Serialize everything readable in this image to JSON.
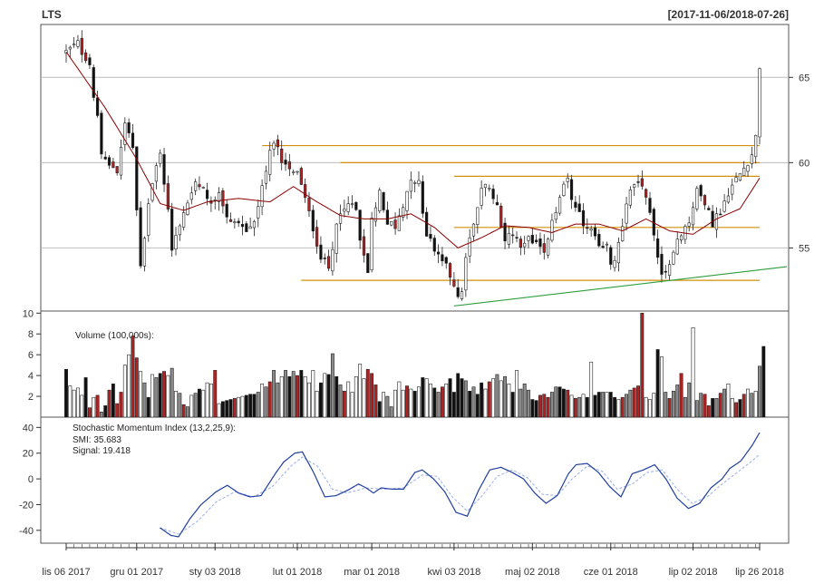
{
  "header": {
    "symbol": "LTS",
    "date_range": "[2017-11-06/2018-07-26]"
  },
  "colors": {
    "up_candle": "#ffffff",
    "down_candle_black": "#111111",
    "down_candle_red": "#b22222",
    "ma_line": "#8b0000",
    "hline": "#d4900a",
    "trendline": "#2e9e3e",
    "smi_line": "#1f3f9f",
    "signal_line": "#9aaee8",
    "grid": "#bbbbbb"
  },
  "chart_data": [
    {
      "type": "candlestick",
      "panel": "price",
      "title": "LTS",
      "ylim": [
        51.3,
        68.1
      ],
      "yticks": [
        55,
        60,
        65
      ],
      "x_tick_labels": [
        "lis 06 2017",
        "gru 01 2017",
        "sty 03 2018",
        "lut 01 2018",
        "mar 01 2018",
        "kwi 03 2018",
        "maj 02 2018",
        "cze 01 2018",
        "lip 02 2018",
        "lip 26 2018"
      ],
      "x_tick_index": [
        0,
        18,
        38,
        59,
        78,
        99,
        119,
        139,
        160,
        177
      ],
      "n_bars": 178,
      "close_path": [
        [
          0,
          66.5
        ],
        [
          3,
          67.0
        ],
        [
          6,
          65.5
        ],
        [
          8,
          62.5
        ],
        [
          9,
          60.3
        ],
        [
          11,
          59.9
        ],
        [
          13,
          59.6
        ],
        [
          15,
          62.3
        ],
        [
          16,
          62.0
        ],
        [
          17,
          61.0
        ],
        [
          18,
          57.0
        ],
        [
          19,
          54.0
        ],
        [
          20,
          55.3
        ],
        [
          21,
          57.5
        ],
        [
          22,
          59.0
        ],
        [
          24,
          60.7
        ],
        [
          25,
          59.0
        ],
        [
          27,
          55.0
        ],
        [
          29,
          56.5
        ],
        [
          31,
          57.7
        ],
        [
          33,
          58.7
        ],
        [
          35,
          58.5
        ],
        [
          37,
          57.7
        ],
        [
          39,
          58.4
        ],
        [
          41,
          56.8
        ],
        [
          44,
          56.4
        ],
        [
          46,
          56.0
        ],
        [
          48,
          56.6
        ],
        [
          50,
          58.5
        ],
        [
          52,
          60.7
        ],
        [
          53,
          61.4
        ],
        [
          55,
          60.2
        ],
        [
          57,
          59.8
        ],
        [
          59,
          59.5
        ],
        [
          61,
          57.8
        ],
        [
          63,
          56.2
        ],
        [
          65,
          54.5
        ],
        [
          67,
          53.8
        ],
        [
          69,
          56.5
        ],
        [
          72,
          57.5
        ],
        [
          74,
          57.5
        ],
        [
          75,
          55.5
        ],
        [
          76,
          54.5
        ],
        [
          77,
          53.7
        ],
        [
          78,
          56.8
        ],
        [
          80,
          58.3
        ],
        [
          82,
          56.6
        ],
        [
          84,
          56.3
        ],
        [
          86,
          57.5
        ],
        [
          88,
          59.2
        ],
        [
          90,
          58.8
        ],
        [
          92,
          55.7
        ],
        [
          94,
          55.0
        ],
        [
          96,
          54.3
        ],
        [
          98,
          53.4
        ],
        [
          99,
          53.0
        ],
        [
          100,
          52.0
        ],
        [
          101,
          52.5
        ],
        [
          102,
          54.5
        ],
        [
          104,
          56.5
        ],
        [
          106,
          58.5
        ],
        [
          108,
          58.7
        ],
        [
          110,
          57.5
        ],
        [
          112,
          55.5
        ],
        [
          114,
          55.8
        ],
        [
          116,
          55.3
        ],
        [
          118,
          55.6
        ],
        [
          120,
          55.4
        ],
        [
          122,
          55.0
        ],
        [
          124,
          56.4
        ],
        [
          126,
          58.0
        ],
        [
          128,
          59.0
        ],
        [
          130,
          57.2
        ],
        [
          132,
          56.5
        ],
        [
          134,
          56.0
        ],
        [
          136,
          54.9
        ],
        [
          138,
          55.0
        ],
        [
          139,
          53.9
        ],
        [
          140,
          54.3
        ],
        [
          142,
          56.5
        ],
        [
          144,
          58.5
        ],
        [
          146,
          59.0
        ],
        [
          148,
          58.2
        ],
        [
          150,
          55.7
        ],
        [
          152,
          53.5
        ],
        [
          153,
          53.6
        ],
        [
          155,
          55.0
        ],
        [
          157,
          55.7
        ],
        [
          159,
          56.6
        ],
        [
          161,
          58.5
        ],
        [
          163,
          57.5
        ],
        [
          165,
          56.5
        ],
        [
          167,
          57.2
        ],
        [
          169,
          58.3
        ],
        [
          171,
          59.0
        ],
        [
          173,
          59.7
        ],
        [
          175,
          60.5
        ],
        [
          176,
          61.5
        ],
        [
          177,
          65.7
        ]
      ],
      "moving_average": [
        [
          0,
          66.5
        ],
        [
          10,
          63.2
        ],
        [
          18,
          60.2
        ],
        [
          24,
          57.6
        ],
        [
          30,
          57.2
        ],
        [
          36,
          57.7
        ],
        [
          44,
          57.9
        ],
        [
          52,
          57.7
        ],
        [
          58,
          58.6
        ],
        [
          64,
          57.7
        ],
        [
          70,
          56.9
        ],
        [
          76,
          56.7
        ],
        [
          82,
          56.7
        ],
        [
          88,
          57.0
        ],
        [
          94,
          56.2
        ],
        [
          100,
          55.0
        ],
        [
          106,
          55.6
        ],
        [
          112,
          56.3
        ],
        [
          118,
          56.2
        ],
        [
          124,
          55.9
        ],
        [
          130,
          56.4
        ],
        [
          136,
          56.4
        ],
        [
          142,
          56.0
        ],
        [
          148,
          56.7
        ],
        [
          154,
          56.0
        ],
        [
          160,
          55.8
        ],
        [
          166,
          56.7
        ],
        [
          172,
          57.3
        ],
        [
          177,
          59.1
        ]
      ],
      "horizontal_lines": [
        {
          "y": 61.0,
          "from": 50,
          "to": 177
        },
        {
          "y": 60.0,
          "from": 70,
          "to": 177
        },
        {
          "y": 59.2,
          "from": 99,
          "to": 177
        },
        {
          "y": 56.2,
          "from": 99,
          "to": 177
        },
        {
          "y": 53.1,
          "from": 60,
          "to": 177
        }
      ],
      "trendline": {
        "from": [
          99,
          51.6
        ],
        "to": [
          177,
          53.9
        ]
      }
    },
    {
      "type": "bar",
      "panel": "volume",
      "label": "Volume (100,000s):",
      "ylim": [
        0,
        10.2
      ],
      "yticks": [
        2,
        4,
        6,
        8,
        10
      ],
      "values": [
        4.6,
        3.0,
        2.6,
        2.8,
        2.1,
        3.8,
        0.9,
        1.9,
        2.1,
        0.5,
        1.1,
        2.6,
        3.2,
        1.3,
        2.4,
        5.0,
        6.0,
        7.8,
        5.7,
        4.4,
        3.3,
        1.9,
        4.1,
        3.8,
        4.2,
        4.4,
        4.0,
        4.7,
        2.5,
        2.3,
        1.2,
        1.0,
        2.1,
        2.3,
        2.7,
        2.6,
        3.3,
        3.2,
        4.5,
        1.3,
        1.5,
        1.6,
        1.7,
        1.8,
        1.9,
        2.0,
        2.1,
        2.2,
        2.2,
        2.4,
        3.2,
        2.9,
        3.4,
        4.5,
        3.3,
        3.9,
        4.5,
        3.9,
        4.4,
        4.0,
        4.5,
        3.9,
        3.3,
        4.5,
        2.5,
        3.3,
        4.2,
        4.1,
        6.1,
        3.9,
        3.1,
        2.5,
        3.4,
        2.4,
        3.9,
        5.1,
        3.7,
        4.6,
        4.2,
        3.1,
        1.5,
        2.4,
        2.0,
        1.0,
        2.6,
        3.4,
        2.6,
        3.0,
        2.7,
        2.5,
        2.9,
        3.8,
        3.7,
        3.2,
        2.8,
        2.4,
        2.9,
        3.2,
        3.7,
        2.4,
        4.2,
        3.7,
        3.5,
        2.5,
        2.9,
        2.2,
        3.3,
        2.7,
        3.4,
        3.7,
        4.1,
        3.5,
        3.9,
        3.2,
        2.4,
        4.5,
        2.7,
        3.2,
        2.6,
        1.7,
        1.6,
        2.1,
        2.2,
        1.9,
        2.4,
        2.9,
        2.9,
        2.7,
        2.6,
        2.1,
        1.8,
        1.9,
        2.2,
        1.9,
        5.3,
        2.1,
        2.4,
        2.4,
        2.4,
        2.4,
        1.9,
        1.7,
        1.9,
        2.2,
        2.6,
        2.8,
        3.0,
        10.0,
        1.9,
        1.7,
        2.3,
        6.5,
        5.8,
        2.4,
        1.8,
        2.5,
        3.1,
        4.2,
        1.9,
        3.3,
        8.6,
        1.6,
        2.3,
        2.2,
        1.1,
        1.8,
        1.8,
        2.3,
        2.7,
        3.2,
        1.8,
        1.4,
        1.7,
        2.2,
        2.7,
        2.3,
        2.5,
        4.9,
        6.8
      ],
      "volume_rel": [
        0.47,
        0.3,
        0.27,
        0.28,
        0.23,
        0.45,
        0.09,
        0.2,
        0.26,
        0.05,
        0.1,
        0.27,
        0.38,
        0.13,
        0.27,
        0.66,
        0.45,
        0.74,
        0.48,
        0.47,
        0.46,
        0.26,
        0.4,
        0.5,
        0.47,
        0.27,
        0.35,
        0.33,
        0.14,
        0.23,
        0.12,
        0.09,
        0.2,
        0.24,
        0.29,
        0.27,
        0.3,
        0.3,
        0.42,
        0.17,
        0.14,
        0.28,
        0.3,
        0.44,
        0.43,
        0.33,
        0.4,
        0.31,
        0.42,
        0.27,
        0.29,
        0.39,
        0.45,
        0.62,
        0.36,
        0.42,
        0.63,
        0.54,
        0.35,
        0.3,
        0.41,
        0.39,
        0.3,
        0.45,
        0.3,
        0.3,
        0.4,
        0.58,
        0.99,
        0.9,
        0.22,
        0.35,
        0.33,
        0.51,
        0.51,
        0.41,
        0.35,
        0.45,
        0.33,
        0.27,
        0.17,
        0.29,
        0.29,
        0.16,
        0.25,
        0.41,
        0.22,
        0.37,
        0.27,
        0.22,
        0.33,
        0.48,
        0.5,
        0.3,
        0.22,
        0.17,
        0.23,
        0.33,
        0.49,
        0.24,
        0.38,
        0.3,
        0.32,
        0.24,
        0.33,
        0.29,
        0.28,
        0.24,
        0.32,
        0.36,
        0.38,
        0.33,
        0.37,
        0.33,
        0.2,
        0.43,
        0.29,
        0.3,
        0.25,
        0.17,
        0.18,
        0.22,
        0.21,
        0.19,
        0.24,
        0.28,
        0.28,
        0.28,
        0.27,
        0.2,
        0.18,
        0.2,
        0.23,
        0.18,
        0.52,
        0.2,
        0.24,
        0.24,
        0.24,
        0.24,
        0.2,
        0.17,
        0.19,
        0.22,
        0.25,
        0.29,
        0.31,
        1.0,
        0.19,
        0.18,
        0.22,
        0.63,
        0.57,
        0.24,
        0.19,
        0.25,
        0.3,
        0.42,
        0.18,
        0.33,
        0.87,
        0.16,
        0.22,
        0.2,
        0.1,
        0.17,
        0.17,
        0.24,
        0.26,
        0.33,
        0.18,
        0.14,
        0.17,
        0.22,
        0.28,
        0.22,
        0.25,
        0.49,
        0.68
      ]
    },
    {
      "type": "line",
      "panel": "indicator",
      "label": "Stochastic Momentum Index (13,2,25,9):",
      "smi_label": "SMI: 35.683",
      "signal_label": "Signal: 19.418",
      "ylim": [
        -50,
        48
      ],
      "yticks": [
        -40,
        -20,
        0,
        20,
        40
      ],
      "smi": [
        [
          25,
          -38
        ],
        [
          28,
          -44
        ],
        [
          30,
          -45
        ],
        [
          33,
          -31
        ],
        [
          36,
          -20
        ],
        [
          40,
          -10
        ],
        [
          43,
          -5
        ],
        [
          46,
          -11
        ],
        [
          49,
          -14
        ],
        [
          52,
          -13
        ],
        [
          56,
          5
        ],
        [
          58,
          13
        ],
        [
          61,
          20
        ],
        [
          63,
          21
        ],
        [
          66,
          5
        ],
        [
          69,
          -14
        ],
        [
          72,
          -13
        ],
        [
          75,
          -9
        ],
        [
          78,
          -4
        ],
        [
          80,
          -7
        ],
        [
          82,
          -11
        ],
        [
          84,
          -7
        ],
        [
          87,
          -8
        ],
        [
          90,
          -8
        ],
        [
          93,
          5
        ],
        [
          95,
          7
        ],
        [
          98,
          0
        ],
        [
          101,
          -10
        ],
        [
          104,
          -26
        ],
        [
          107,
          -29
        ],
        [
          110,
          -9
        ],
        [
          113,
          7
        ],
        [
          116,
          9
        ],
        [
          119,
          5
        ],
        [
          122,
          0
        ],
        [
          125,
          -11
        ],
        [
          128,
          -19
        ],
        [
          131,
          -13
        ],
        [
          134,
          4
        ],
        [
          136,
          11
        ],
        [
          139,
          12
        ],
        [
          142,
          5
        ],
        [
          145,
          -6
        ],
        [
          148,
          -14
        ],
        [
          151,
          4
        ],
        [
          154,
          7
        ],
        [
          157,
          11
        ],
        [
          160,
          0
        ],
        [
          163,
          -15
        ],
        [
          166,
          -23
        ],
        [
          169,
          -19
        ],
        [
          172,
          -7
        ],
        [
          175,
          0
        ],
        [
          177,
          8
        ],
        [
          180,
          14
        ],
        [
          183,
          26
        ],
        [
          185,
          36
        ]
      ],
      "signal": [
        [
          25,
          -38
        ],
        [
          30,
          -43
        ],
        [
          35,
          -33
        ],
        [
          40,
          -18
        ],
        [
          45,
          -10
        ],
        [
          50,
          -14
        ],
        [
          55,
          -6
        ],
        [
          60,
          10
        ],
        [
          63,
          17
        ],
        [
          67,
          10
        ],
        [
          71,
          -8
        ],
        [
          75,
          -11
        ],
        [
          80,
          -7
        ],
        [
          85,
          -8
        ],
        [
          90,
          -7
        ],
        [
          95,
          3
        ],
        [
          99,
          2
        ],
        [
          103,
          -14
        ],
        [
          107,
          -25
        ],
        [
          111,
          -13
        ],
        [
          115,
          2
        ],
        [
          119,
          7
        ],
        [
          123,
          1
        ],
        [
          127,
          -12
        ],
        [
          131,
          -13
        ],
        [
          135,
          0
        ],
        [
          139,
          10
        ],
        [
          143,
          6
        ],
        [
          147,
          -8
        ],
        [
          151,
          -4
        ],
        [
          155,
          5
        ],
        [
          159,
          7
        ],
        [
          163,
          -8
        ],
        [
          167,
          -19
        ],
        [
          171,
          -14
        ],
        [
          175,
          -4
        ],
        [
          179,
          5
        ],
        [
          183,
          14
        ],
        [
          185,
          19
        ]
      ]
    }
  ]
}
